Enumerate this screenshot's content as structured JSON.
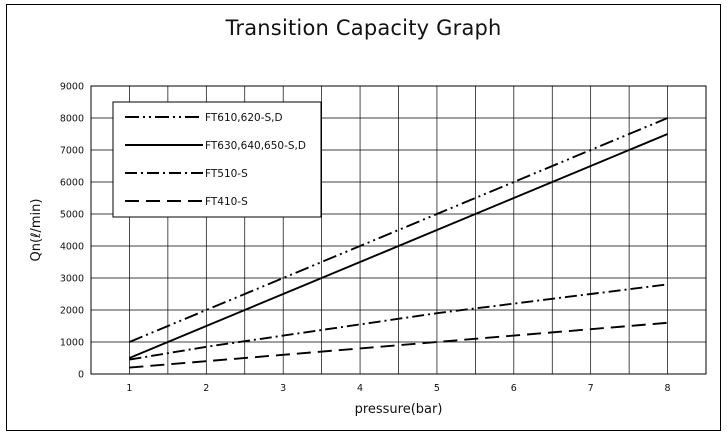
{
  "chart_data": {
    "type": "line",
    "title": "Transition Capacity Graph",
    "xlabel": "pressure(bar)",
    "ylabel": "Qn(ℓ/min)",
    "x": [
      1,
      2,
      3,
      4,
      5,
      6,
      7,
      8
    ],
    "x_ticks": [
      "1",
      "2",
      "3",
      "4",
      "5",
      "6",
      "7",
      "8"
    ],
    "xlim": [
      0.5,
      8.5
    ],
    "ylim": [
      0,
      9000
    ],
    "y_ticks": [
      "0",
      "1000",
      "2000",
      "3000",
      "4000",
      "5000",
      "6000",
      "7000",
      "8000",
      "9000"
    ],
    "grid": true,
    "legend_position": "top-left",
    "series": [
      {
        "name": "FT610,620-S,D",
        "values": [
          1000,
          2000,
          3000,
          4000,
          5000,
          6000,
          7000,
          8000
        ],
        "dash": "dash-dot-dot",
        "color": "#000000"
      },
      {
        "name": "FT630,640,650-S,D",
        "values": [
          500,
          1500,
          2500,
          3500,
          4500,
          5500,
          6500,
          7500
        ],
        "dash": "solid",
        "color": "#000000"
      },
      {
        "name": "FT510-S",
        "values": [
          450,
          850,
          1200,
          1550,
          1900,
          2200,
          2500,
          2800
        ],
        "dash": "dash-dot",
        "color": "#000000"
      },
      {
        "name": "FT410-S",
        "values": [
          200,
          400,
          600,
          800,
          1000,
          1200,
          1400,
          1600
        ],
        "dash": "dash",
        "color": "#000000"
      }
    ]
  }
}
